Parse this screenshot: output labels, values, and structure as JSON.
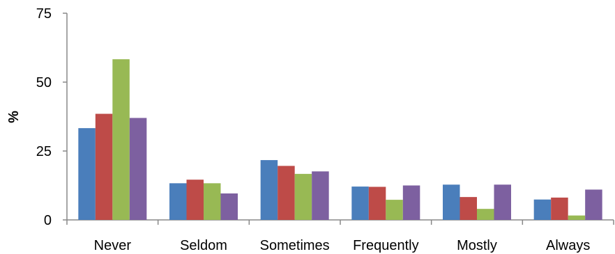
{
  "chart_data": {
    "type": "bar",
    "title": "",
    "xlabel": "",
    "ylabel": "%",
    "ylim": [
      0,
      75
    ],
    "yticks": [
      "0",
      "25",
      "50",
      "75"
    ],
    "grid": false,
    "legend": "none",
    "categories": [
      "Never",
      "Seldom",
      "Sometimes",
      "Frequently",
      "Mostly",
      "Always"
    ],
    "series": [
      {
        "color": "#4a7ebb",
        "values": [
          33.3,
          13.3,
          21.7,
          12.1,
          12.8,
          7.4
        ]
      },
      {
        "color": "#be4b48",
        "values": [
          38.5,
          14.6,
          19.6,
          12.0,
          8.3,
          8.1
        ]
      },
      {
        "color": "#98b954",
        "values": [
          58.3,
          13.3,
          16.7,
          7.3,
          4.0,
          1.6
        ]
      },
      {
        "color": "#7d60a0",
        "values": [
          37.0,
          9.6,
          17.6,
          12.5,
          12.8,
          11.0
        ]
      }
    ]
  }
}
